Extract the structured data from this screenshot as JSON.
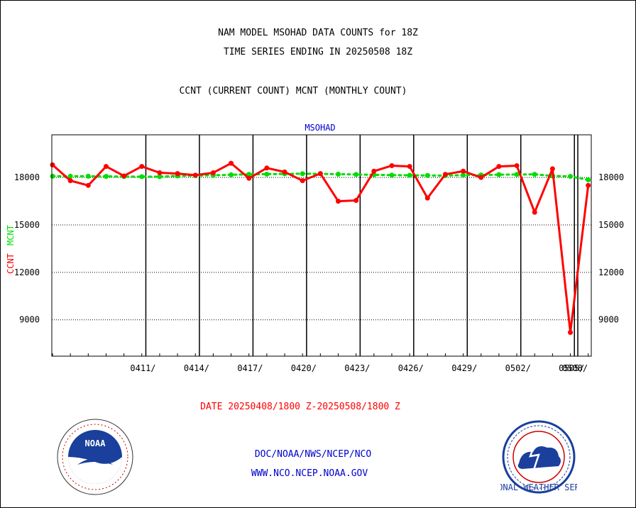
{
  "title_lines": [
    "NAM MODEL MSOHAD DATA COUNTS for 18Z",
    "TIME SERIES ENDING IN 20250508 18Z"
  ],
  "subtitle": "CCNT (CURRENT COUNT) MCNT (MONTHLY COUNT)",
  "plot_label": "MSOHAD",
  "ylabel_ccnt": "CCNT",
  "ylabel_mcnt": "MCNT",
  "date_range": "DATE 20250408/1800 Z-20250508/1800 Z",
  "footer": {
    "line1": "DOC/NOAA/NWS/NCEP/NCO",
    "line2": "WWW.NCO.NCEP.NOAA.GOV"
  },
  "logos": {
    "left": "NOAA",
    "right": "NATIONAL WEATHER SERVICE"
  },
  "colors": {
    "ccnt": "#ff0000",
    "mcnt": "#00dd00",
    "text_blue": "#0000cc",
    "grid": "#000000"
  },
  "chart_data": {
    "type": "line",
    "x": [
      0,
      1,
      2,
      3,
      4,
      5,
      6,
      7,
      8,
      9,
      10,
      11,
      12,
      13,
      14,
      15,
      16,
      17,
      18,
      19,
      20,
      21,
      22,
      23,
      24,
      25,
      26,
      27,
      28,
      29,
      30
    ],
    "x_tick_labels": [
      "0411/",
      "0414/",
      "0417/",
      "0420/",
      "0423/",
      "0426/",
      "0429/",
      "0502/",
      "0505/",
      "0508/"
    ],
    "x_tick_positions": [
      3,
      6,
      9,
      12,
      15,
      18,
      21,
      24,
      27,
      30
    ],
    "y_ticks": [
      9000,
      12000,
      15000,
      18000
    ],
    "ylim": [
      6700,
      20700
    ],
    "series": [
      {
        "name": "CCNT",
        "values": [
          18800,
          17800,
          17500,
          18700,
          18100,
          18700,
          18300,
          18250,
          18150,
          18300,
          18900,
          17950,
          18600,
          18350,
          17800,
          18250,
          16500,
          16550,
          18400,
          18750,
          18700,
          16700,
          18200,
          18400,
          18000,
          18700,
          18750,
          15800,
          18550,
          8200,
          17500
        ]
      },
      {
        "name": "MCNT",
        "values": [
          18080,
          18080,
          18080,
          18070,
          18060,
          18050,
          18050,
          18100,
          18120,
          18140,
          18170,
          18200,
          18210,
          18230,
          18240,
          18230,
          18210,
          18190,
          18170,
          18150,
          18140,
          18130,
          18120,
          18150,
          18160,
          18180,
          18190,
          18200,
          18100,
          18070,
          17850
        ]
      }
    ],
    "grid": true
  }
}
